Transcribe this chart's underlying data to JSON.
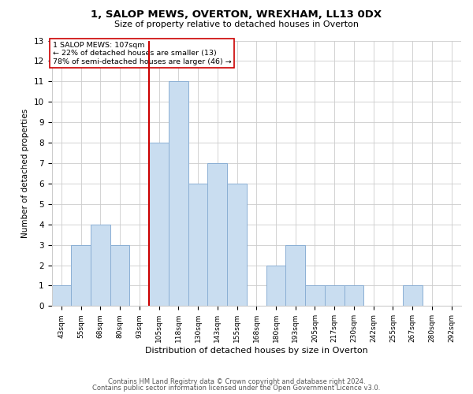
{
  "title": "1, SALOP MEWS, OVERTON, WREXHAM, LL13 0DX",
  "subtitle": "Size of property relative to detached houses in Overton",
  "xlabel": "Distribution of detached houses by size in Overton",
  "ylabel": "Number of detached properties",
  "bar_color": "#c9ddf0",
  "bar_edge_color": "#8bafd4",
  "bin_labels": [
    "43sqm",
    "55sqm",
    "68sqm",
    "80sqm",
    "93sqm",
    "105sqm",
    "118sqm",
    "130sqm",
    "143sqm",
    "155sqm",
    "168sqm",
    "180sqm",
    "193sqm",
    "205sqm",
    "217sqm",
    "230sqm",
    "242sqm",
    "255sqm",
    "267sqm",
    "280sqm",
    "292sqm"
  ],
  "bin_values": [
    1,
    3,
    4,
    3,
    0,
    8,
    11,
    6,
    7,
    6,
    0,
    2,
    3,
    1,
    1,
    1,
    0,
    0,
    1,
    0,
    0
  ],
  "ylim": [
    0,
    13
  ],
  "yticks": [
    0,
    1,
    2,
    3,
    4,
    5,
    6,
    7,
    8,
    9,
    10,
    11,
    12,
    13
  ],
  "property_line_bin_index": 5,
  "annotation_line1": "1 SALOP MEWS: 107sqm",
  "annotation_line2": "← 22% of detached houses are smaller (13)",
  "annotation_line3": "78% of semi-detached houses are larger (46) →",
  "annotation_box_color": "#ffffff",
  "annotation_box_edge": "#cc0000",
  "property_line_color": "#cc0000",
  "footer_line1": "Contains HM Land Registry data © Crown copyright and database right 2024.",
  "footer_line2": "Contains public sector information licensed under the Open Government Licence v3.0.",
  "background_color": "#ffffff",
  "grid_color": "#cccccc"
}
